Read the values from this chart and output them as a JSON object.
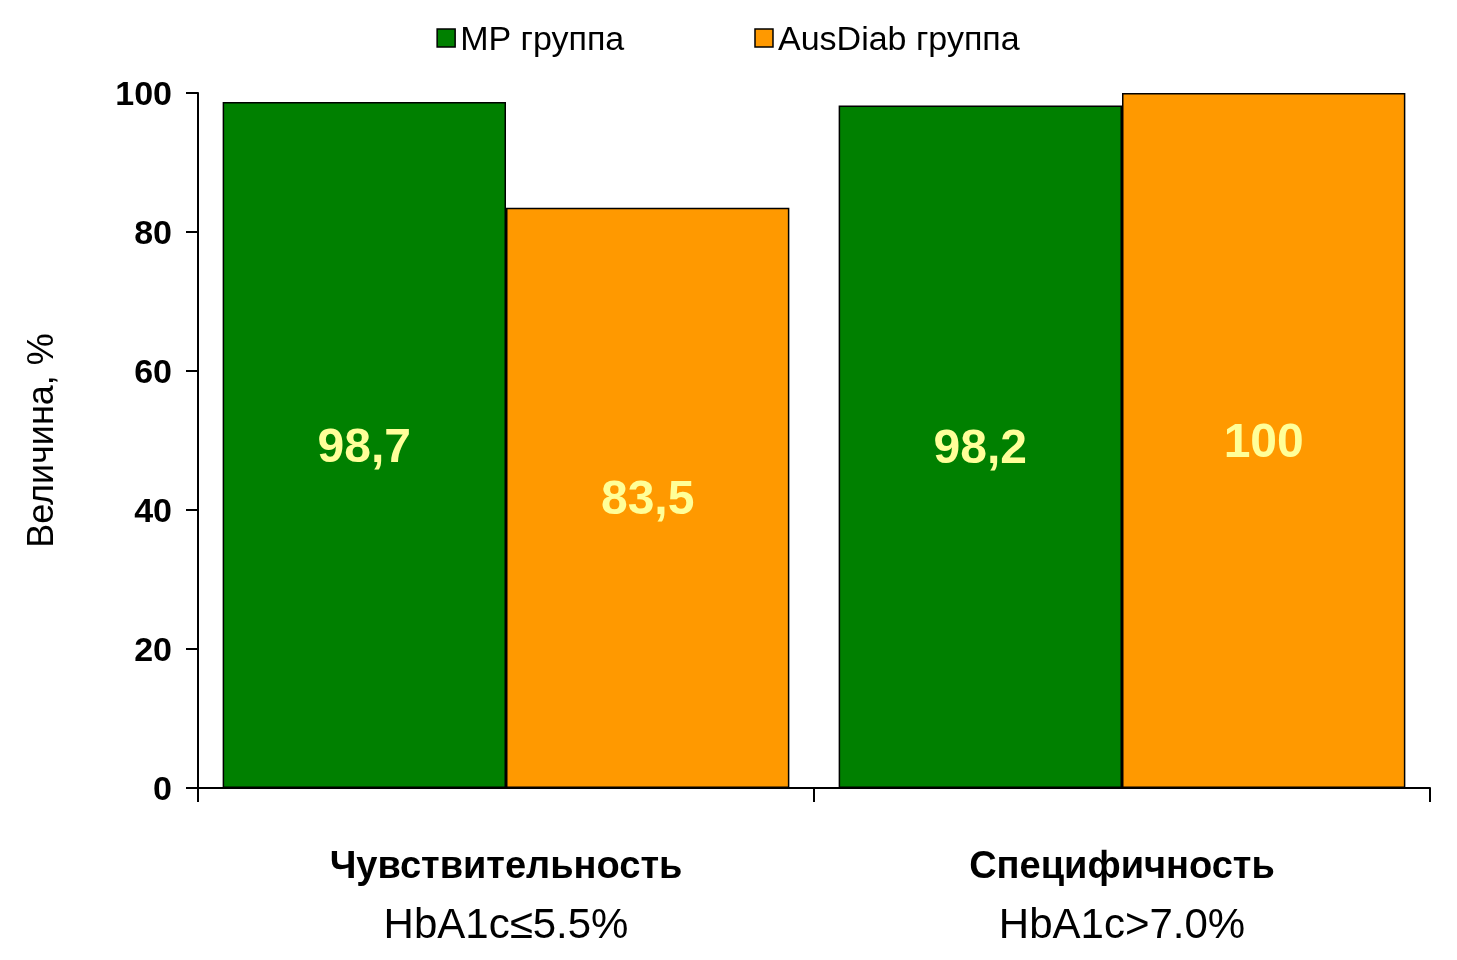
{
  "chart_data": {
    "type": "bar",
    "ylabel": "Величина, %",
    "categories": [
      "Чувствительность\nHbA1c≤5.5%",
      "Специфичность\nHbA1c>7.0%"
    ],
    "series": [
      {
        "name": "МР группа",
        "color": "#008000",
        "values": [
          98.7,
          98.2
        ],
        "value_labels": [
          "98,7",
          "98,2"
        ]
      },
      {
        "name": "AusDiab группа",
        "color": "#ff9900",
        "values": [
          83.5,
          100
        ],
        "value_labels": [
          "83,5",
          "100"
        ]
      }
    ],
    "ylim": [
      0,
      100
    ],
    "yticks": [
      0,
      20,
      40,
      60,
      80,
      100
    ],
    "grid": false,
    "legend": "top"
  }
}
